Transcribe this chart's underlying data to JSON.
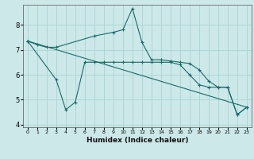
{
  "xlabel": "Humidex (Indice chaleur)",
  "bg_color": "#cce8e8",
  "grid_color": "#aad4d4",
  "line_color": "#1a6b6b",
  "xlim": [
    -0.5,
    23.5
  ],
  "ylim": [
    3.9,
    8.8
  ],
  "yticks": [
    4,
    5,
    6,
    7,
    8
  ],
  "xticks": [
    0,
    1,
    2,
    3,
    4,
    5,
    6,
    7,
    8,
    9,
    10,
    11,
    12,
    13,
    14,
    15,
    16,
    17,
    18,
    19,
    20,
    21,
    22,
    23
  ],
  "series": [
    {
      "x": [
        0,
        1,
        2,
        3,
        7,
        9,
        10,
        11,
        12,
        13,
        14,
        15,
        16,
        17,
        18,
        19,
        20,
        21,
        22,
        23
      ],
      "y": [
        7.35,
        7.2,
        7.1,
        7.1,
        7.55,
        7.7,
        7.8,
        8.65,
        7.3,
        6.6,
        6.6,
        6.55,
        6.5,
        6.45,
        6.2,
        5.75,
        5.5,
        5.5,
        4.4,
        4.7
      ]
    },
    {
      "x": [
        0,
        3,
        4,
        5,
        6,
        7,
        8,
        9,
        10,
        11,
        12,
        13,
        14,
        15,
        16,
        17,
        18,
        19,
        20,
        21,
        22,
        23
      ],
      "y": [
        7.35,
        5.8,
        4.6,
        4.9,
        6.5,
        6.5,
        6.5,
        6.5,
        6.5,
        6.5,
        6.5,
        6.5,
        6.5,
        6.5,
        6.4,
        6.0,
        5.6,
        5.5,
        5.5,
        5.5,
        4.4,
        4.7
      ]
    },
    {
      "x": [
        0,
        23
      ],
      "y": [
        7.35,
        4.7
      ]
    }
  ]
}
